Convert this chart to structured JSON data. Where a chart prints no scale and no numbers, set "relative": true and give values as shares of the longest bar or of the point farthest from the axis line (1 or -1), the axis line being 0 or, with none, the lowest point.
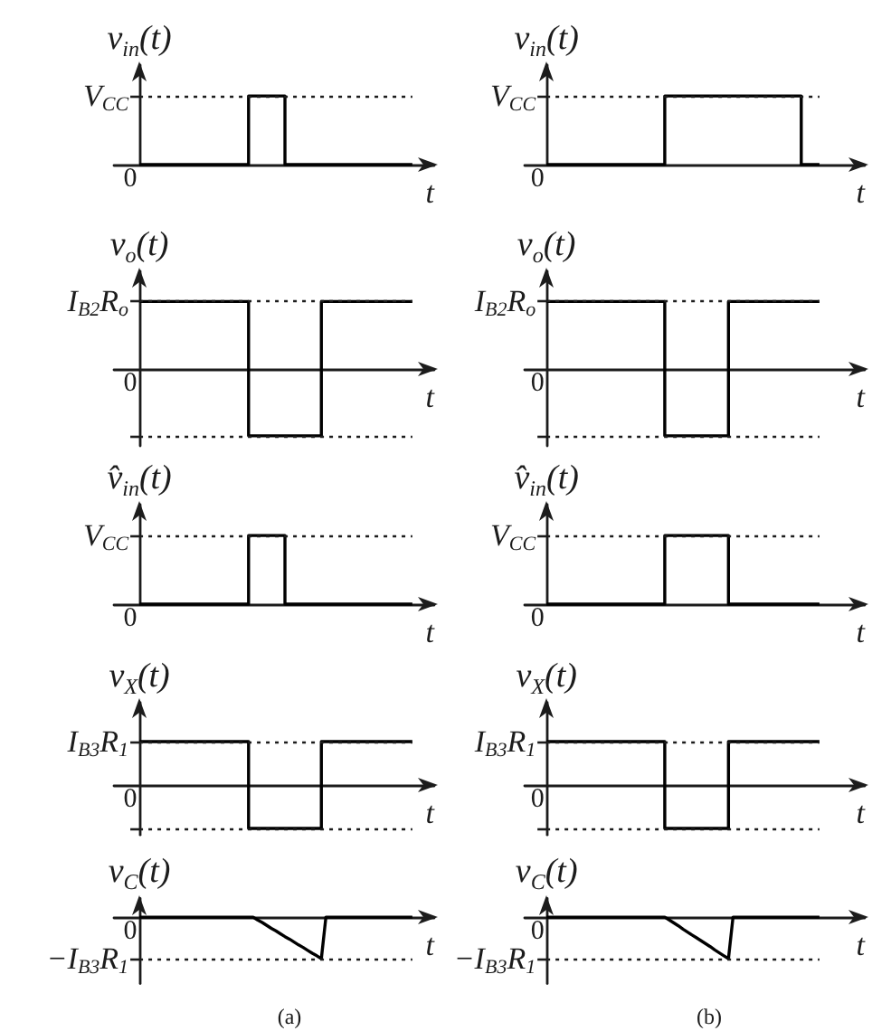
{
  "chart_data": [
    {
      "type": "step",
      "relative": true,
      "ylabel": "v$_{in}$(t)",
      "xlabel": "t",
      "categories": [
        null,
        null,
        null,
        null,
        null,
        null,
        null,
        null,
        null,
        null,
        null,
        null,
        null,
        null,
        null,
        null,
        null,
        null,
        null,
        null,
        null,
        null,
        null,
        null,
        null,
        null,
        null,
        null,
        null,
        null,
        null
      ],
      "values": [
        0,
        0,
        0,
        0,
        0,
        0,
        0,
        0,
        0,
        0,
        0,
        0,
        1,
        1,
        1,
        1,
        0,
        0,
        0,
        0,
        0,
        0,
        0,
        0,
        0,
        0,
        0,
        0,
        0,
        0,
        0
      ],
      "color": "#000000",
      "ref_lines": [
        {
          "axis": "y",
          "value": 1,
          "label": "V$_{CC}$",
          "line_style": "dotted"
        }
      ],
      "annotations": [
        "0"
      ]
    },
    {
      "type": "step",
      "relative": true,
      "ylabel": "v$_{o}$(t)",
      "xlabel": "t",
      "categories": [
        null,
        null,
        null,
        null,
        null,
        null,
        null,
        null,
        null,
        null,
        null,
        null,
        null,
        null,
        null,
        null,
        null,
        null,
        null,
        null,
        null,
        null,
        null,
        null,
        null,
        null,
        null,
        null,
        null,
        null,
        null
      ],
      "values": [
        1,
        1,
        1,
        1,
        1,
        1,
        1,
        1,
        1,
        1,
        1,
        1,
        -1,
        -1,
        -1,
        -1,
        -1,
        -1,
        -1,
        -1,
        1,
        1,
        1,
        1,
        1,
        1,
        1,
        1,
        1,
        1,
        1
      ],
      "color": "#000000",
      "ref_lines": [
        {
          "axis": "y",
          "value": 1,
          "label": "I$_{B2}$R$_{o}$",
          "line_style": "dotted"
        },
        {
          "axis": "y",
          "value": -1,
          "line_style": "dotted"
        }
      ],
      "annotations": [
        "0"
      ]
    },
    {
      "type": "step",
      "relative": true,
      "ylabel": "v̂$_{in}$(t)",
      "xlabel": "t",
      "categories": [
        null,
        null,
        null,
        null,
        null,
        null,
        null,
        null,
        null,
        null,
        null,
        null,
        null,
        null,
        null,
        null,
        null,
        null,
        null,
        null,
        null,
        null,
        null,
        null,
        null,
        null,
        null,
        null,
        null,
        null,
        null
      ],
      "values": [
        0,
        0,
        0,
        0,
        0,
        0,
        0,
        0,
        0,
        0,
        0,
        0,
        1,
        1,
        1,
        1,
        0,
        0,
        0,
        0,
        0,
        0,
        0,
        0,
        0,
        0,
        0,
        0,
        0,
        0,
        0
      ],
      "color": "#000000",
      "ref_lines": [
        {
          "axis": "y",
          "value": 1,
          "label": "V$_{CC}$",
          "line_style": "dotted"
        }
      ],
      "annotations": [
        "0"
      ]
    },
    {
      "type": "step",
      "relative": true,
      "ylabel": "v$_{X}$(t)",
      "xlabel": "t",
      "categories": [
        null,
        null,
        null,
        null,
        null,
        null,
        null,
        null,
        null,
        null,
        null,
        null,
        null,
        null,
        null,
        null,
        null,
        null,
        null,
        null,
        null,
        null,
        null,
        null,
        null,
        null,
        null,
        null,
        null,
        null,
        null
      ],
      "values": [
        1,
        1,
        1,
        1,
        1,
        1,
        1,
        1,
        1,
        1,
        1,
        1,
        -1,
        -1,
        -1,
        -1,
        -1,
        -1,
        -1,
        -1,
        1,
        1,
        1,
        1,
        1,
        1,
        1,
        1,
        1,
        1,
        1
      ],
      "color": "#000000",
      "ref_lines": [
        {
          "axis": "y",
          "value": 1,
          "label": "I$_{B3}$R$_{1}$",
          "line_style": "dotted"
        },
        {
          "axis": "y",
          "value": -1,
          "line_style": "dotted"
        }
      ],
      "annotations": [
        "0"
      ]
    },
    {
      "type": "line",
      "relative": true,
      "ylabel": "v$_{C}$(t)",
      "xlabel": "t",
      "categories": [
        null,
        null,
        null,
        null,
        null,
        null,
        null,
        null,
        null,
        null,
        null,
        null,
        null,
        null,
        null,
        null,
        null,
        null,
        null,
        null,
        null,
        null,
        null,
        null,
        null,
        null,
        null,
        null,
        null,
        null,
        null,
        null,
        null,
        null,
        null,
        null,
        null,
        null,
        null,
        null,
        null,
        null,
        null,
        null,
        null,
        null,
        null,
        null,
        null,
        null,
        null,
        null,
        null,
        null,
        null,
        null,
        null,
        null,
        null,
        null,
        null
      ],
      "values": [
        0,
        0,
        0,
        0,
        0,
        0,
        0,
        0,
        0,
        0,
        0,
        0,
        0,
        0,
        0,
        0,
        0,
        0,
        0,
        0,
        0,
        0,
        0,
        0,
        0,
        0,
        -0.07,
        -0.13,
        -0.2,
        -0.27,
        -0.33,
        -0.4,
        -0.47,
        -0.53,
        -0.6,
        -0.67,
        -0.73,
        -0.8,
        -0.87,
        -0.93,
        -1,
        0,
        0,
        0,
        0,
        0,
        0,
        0,
        0,
        0,
        0,
        0,
        0,
        0,
        0,
        0,
        0,
        0,
        0,
        0,
        0
      ],
      "color": "#000000",
      "ref_lines": [
        {
          "axis": "y",
          "value": -1,
          "label": "−I$_{B3}$R$_{1}$",
          "line_style": "dotted"
        }
      ],
      "annotations": [
        "0",
        "(a)"
      ]
    },
    {
      "type": "step",
      "relative": true,
      "ylabel": "v$_{in}$(t)",
      "xlabel": "t",
      "categories": [
        null,
        null,
        null,
        null,
        null,
        null,
        null,
        null,
        null,
        null,
        null,
        null,
        null,
        null,
        null,
        null,
        null,
        null,
        null,
        null,
        null,
        null,
        null,
        null,
        null,
        null,
        null,
        null,
        null,
        null,
        null
      ],
      "values": [
        0,
        0,
        0,
        0,
        0,
        0,
        0,
        0,
        0,
        0,
        0,
        0,
        0,
        1,
        1,
        1,
        1,
        1,
        1,
        1,
        1,
        1,
        1,
        1,
        1,
        1,
        1,
        1,
        0,
        0,
        0
      ],
      "color": "#000000",
      "ref_lines": [
        {
          "axis": "y",
          "value": 1,
          "label": "V$_{CC}$",
          "line_style": "dotted"
        }
      ],
      "annotations": [
        "0"
      ]
    },
    {
      "type": "step",
      "relative": true,
      "ylabel": "v$_{o}$(t)",
      "xlabel": "t",
      "categories": [
        null,
        null,
        null,
        null,
        null,
        null,
        null,
        null,
        null,
        null,
        null,
        null,
        null,
        null,
        null,
        null,
        null,
        null,
        null,
        null,
        null,
        null,
        null,
        null,
        null,
        null,
        null,
        null,
        null,
        null,
        null
      ],
      "values": [
        1,
        1,
        1,
        1,
        1,
        1,
        1,
        1,
        1,
        1,
        1,
        1,
        1,
        -1,
        -1,
        -1,
        -1,
        -1,
        -1,
        -1,
        1,
        1,
        1,
        1,
        1,
        1,
        1,
        1,
        1,
        1,
        1
      ],
      "color": "#000000",
      "ref_lines": [
        {
          "axis": "y",
          "value": 1,
          "label": "I$_{B2}$R$_{o}$",
          "line_style": "dotted"
        },
        {
          "axis": "y",
          "value": -1,
          "line_style": "dotted"
        }
      ],
      "annotations": [
        "0"
      ]
    },
    {
      "type": "step",
      "relative": true,
      "ylabel": "v̂$_{in}$(t)",
      "xlabel": "t",
      "categories": [
        null,
        null,
        null,
        null,
        null,
        null,
        null,
        null,
        null,
        null,
        null,
        null,
        null,
        null,
        null,
        null,
        null,
        null,
        null,
        null,
        null,
        null,
        null,
        null,
        null,
        null,
        null,
        null,
        null,
        null,
        null
      ],
      "values": [
        0,
        0,
        0,
        0,
        0,
        0,
        0,
        0,
        0,
        0,
        0,
        0,
        0,
        1,
        1,
        1,
        1,
        1,
        1,
        1,
        0,
        0,
        0,
        0,
        0,
        0,
        0,
        0,
        0,
        0,
        0
      ],
      "color": "#000000",
      "ref_lines": [
        {
          "axis": "y",
          "value": 1,
          "label": "V$_{CC}$",
          "line_style": "dotted"
        }
      ],
      "annotations": [
        "0"
      ]
    },
    {
      "type": "step",
      "relative": true,
      "ylabel": "v$_{X}$(t)",
      "xlabel": "t",
      "categories": [
        null,
        null,
        null,
        null,
        null,
        null,
        null,
        null,
        null,
        null,
        null,
        null,
        null,
        null,
        null,
        null,
        null,
        null,
        null,
        null,
        null,
        null,
        null,
        null,
        null,
        null,
        null,
        null,
        null,
        null,
        null
      ],
      "values": [
        1,
        1,
        1,
        1,
        1,
        1,
        1,
        1,
        1,
        1,
        1,
        1,
        1,
        -1,
        -1,
        -1,
        -1,
        -1,
        -1,
        -1,
        1,
        1,
        1,
        1,
        1,
        1,
        1,
        1,
        1,
        1,
        1
      ],
      "color": "#000000",
      "ref_lines": [
        {
          "axis": "y",
          "value": 1,
          "label": "I$_{B3}$R$_{1}$",
          "line_style": "dotted"
        },
        {
          "axis": "y",
          "value": -1,
          "line_style": "dotted"
        }
      ],
      "annotations": [
        "0"
      ]
    },
    {
      "type": "line",
      "relative": true,
      "ylabel": "v$_{C}$(t)",
      "xlabel": "t",
      "categories": [
        null,
        null,
        null,
        null,
        null,
        null,
        null,
        null,
        null,
        null,
        null,
        null,
        null,
        null,
        null,
        null,
        null,
        null,
        null,
        null,
        null,
        null,
        null,
        null,
        null,
        null,
        null,
        null,
        null,
        null,
        null,
        null,
        null,
        null,
        null,
        null,
        null,
        null,
        null,
        null,
        null,
        null,
        null,
        null,
        null,
        null,
        null,
        null,
        null,
        null,
        null,
        null,
        null,
        null,
        null,
        null,
        null,
        null,
        null,
        null,
        null
      ],
      "values": [
        0,
        0,
        0,
        0,
        0,
        0,
        0,
        0,
        0,
        0,
        0,
        0,
        0,
        0,
        0,
        0,
        0,
        0,
        0,
        0,
        0,
        0,
        0,
        0,
        0,
        0,
        0,
        -0.07,
        -0.14,
        -0.21,
        -0.29,
        -0.36,
        -0.43,
        -0.5,
        -0.57,
        -0.64,
        -0.71,
        -0.79,
        -0.86,
        -0.93,
        -1,
        0,
        0,
        0,
        0,
        0,
        0,
        0,
        0,
        0,
        0,
        0,
        0,
        0,
        0,
        0,
        0,
        0,
        0,
        0,
        0
      ],
      "color": "#000000",
      "ref_lines": [
        {
          "axis": "y",
          "value": -1,
          "label": "−I$_{B3}$R$_{1}$",
          "line_style": "dotted"
        }
      ],
      "annotations": [
        "0",
        "(b)"
      ]
    }
  ]
}
